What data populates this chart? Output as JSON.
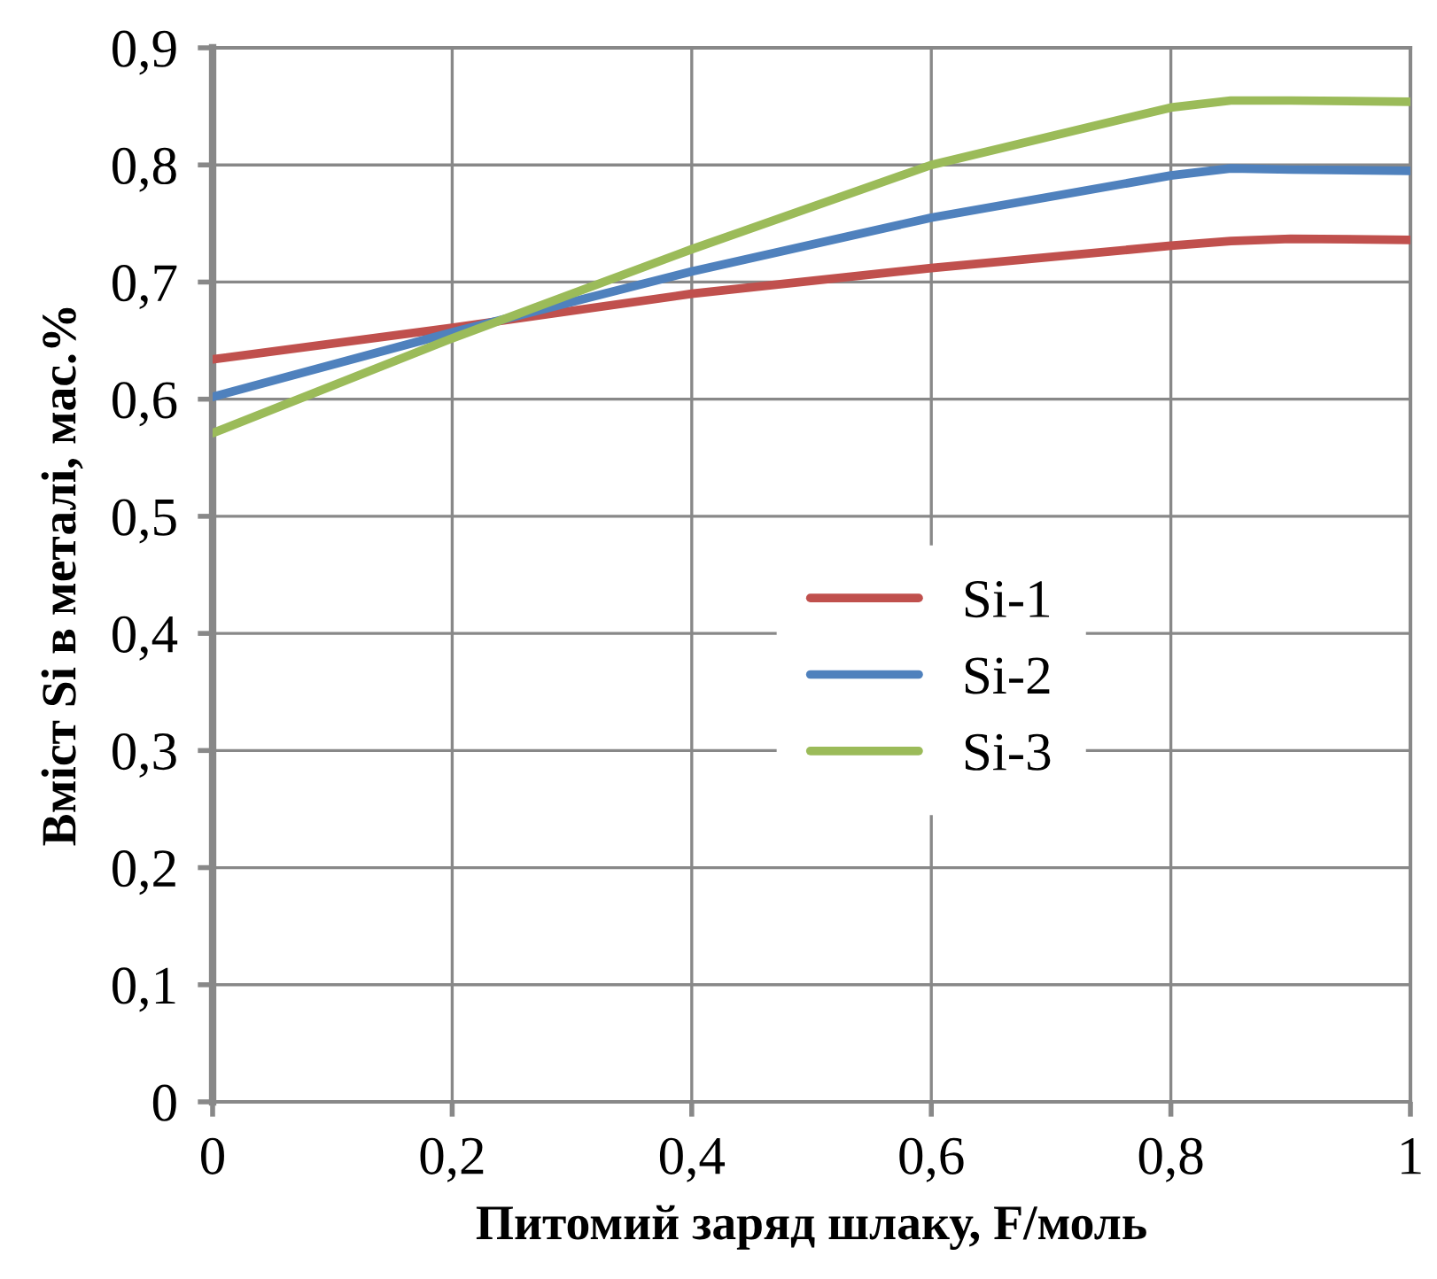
{
  "chart_data": {
    "type": "line",
    "xlabel": "Питомий заряд шлаку, F/моль",
    "ylabel": "Вміст Si в металі, мас.%",
    "x": [
      0,
      0.2,
      0.4,
      0.6,
      0.8,
      0.85,
      0.9,
      1.0
    ],
    "series": [
      {
        "name": "Si-1",
        "color": "#c0504d",
        "values": [
          0.634,
          0.661,
          0.69,
          0.712,
          0.731,
          0.735,
          0.737,
          0.736
        ]
      },
      {
        "name": "Si-2",
        "color": "#4f81bd",
        "values": [
          0.602,
          0.657,
          0.709,
          0.755,
          0.791,
          0.797,
          0.796,
          0.795
        ]
      },
      {
        "name": "Si-3",
        "color": "#9bbb59",
        "values": [
          0.571,
          0.652,
          0.728,
          0.8,
          0.849,
          0.855,
          0.855,
          0.854
        ]
      }
    ],
    "xlim": [
      0,
      1
    ],
    "ylim": [
      0,
      0.9
    ],
    "xticks": [
      0,
      {
        "value": 0.2,
        "label": "0,2"
      },
      {
        "value": 0.4,
        "label": "0,4"
      },
      {
        "value": 0.6,
        "label": "0,6"
      },
      {
        "value": 0.8,
        "label": "0,8"
      },
      1
    ],
    "yticks": [
      0,
      {
        "value": 0.1,
        "label": "0,1"
      },
      {
        "value": 0.2,
        "label": "0,2"
      },
      {
        "value": 0.3,
        "label": "0,3"
      },
      {
        "value": 0.4,
        "label": "0,4"
      },
      {
        "value": 0.5,
        "label": "0,5"
      },
      {
        "value": 0.6,
        "label": "0,6"
      },
      {
        "value": 0.7,
        "label": "0,7"
      },
      {
        "value": 0.8,
        "label": "0,8"
      },
      {
        "value": 0.9,
        "label": "0,9"
      }
    ],
    "grid": true,
    "legend": "center",
    "marker": "none",
    "line_style": "solid"
  }
}
